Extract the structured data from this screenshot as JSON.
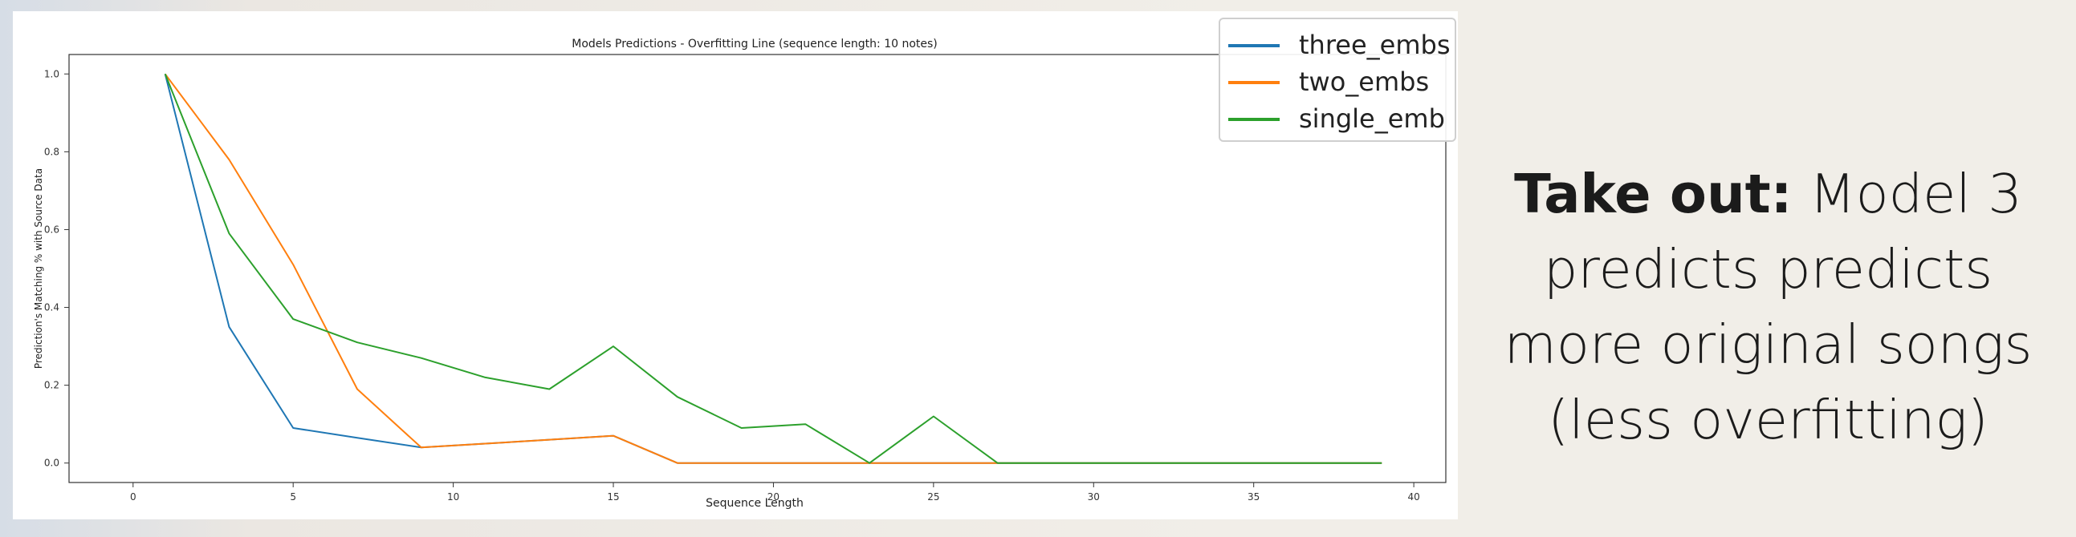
{
  "takeaway": {
    "bold": "Take out:",
    "text": " Model 3 predicts predicts more original songs (less overfitting)"
  },
  "chart_data": {
    "type": "line",
    "title": "Models Predictions - Overfitting Line (sequence length: 10 notes)",
    "xlabel": "Sequence Length",
    "ylabel": "Prediction's Matching % with Source Data",
    "xlim": [
      -2,
      41
    ],
    "ylim": [
      -0.05,
      1.05
    ],
    "xticks": [
      0,
      5,
      10,
      15,
      20,
      25,
      30,
      35,
      40
    ],
    "yticks": [
      0.0,
      0.2,
      0.4,
      0.6,
      0.8,
      1.0
    ],
    "grid": false,
    "legend_position": "top-right",
    "x": [
      1,
      3,
      5,
      7,
      9,
      11,
      13,
      15,
      17,
      19,
      21,
      23,
      25,
      27,
      29,
      31,
      33,
      35,
      37,
      39
    ],
    "series": [
      {
        "name": "three_embs",
        "color": "#1f77b4",
        "values": [
          1.0,
          0.35,
          0.09,
          0.065,
          0.04,
          0.05,
          0.06,
          0.07,
          0.0,
          0.0,
          0.0,
          0.0,
          0.0,
          0.0,
          0.0,
          0.0,
          0.0,
          0.0,
          0.0,
          0.0
        ]
      },
      {
        "name": "two_embs",
        "color": "#ff7f0e",
        "values": [
          1.0,
          0.78,
          0.51,
          0.19,
          0.04,
          0.05,
          0.06,
          0.07,
          0.0,
          0.0,
          0.0,
          0.0,
          0.0,
          0.0,
          0.0,
          0.0,
          0.0,
          0.0,
          0.0,
          0.0
        ]
      },
      {
        "name": "single_emb",
        "color": "#2ca02c",
        "values": [
          1.0,
          0.59,
          0.37,
          0.31,
          0.27,
          0.22,
          0.19,
          0.3,
          0.17,
          0.09,
          0.1,
          0.0,
          0.12,
          0.0,
          0.0,
          0.0,
          0.0,
          0.0,
          0.0,
          0.0
        ]
      }
    ]
  }
}
